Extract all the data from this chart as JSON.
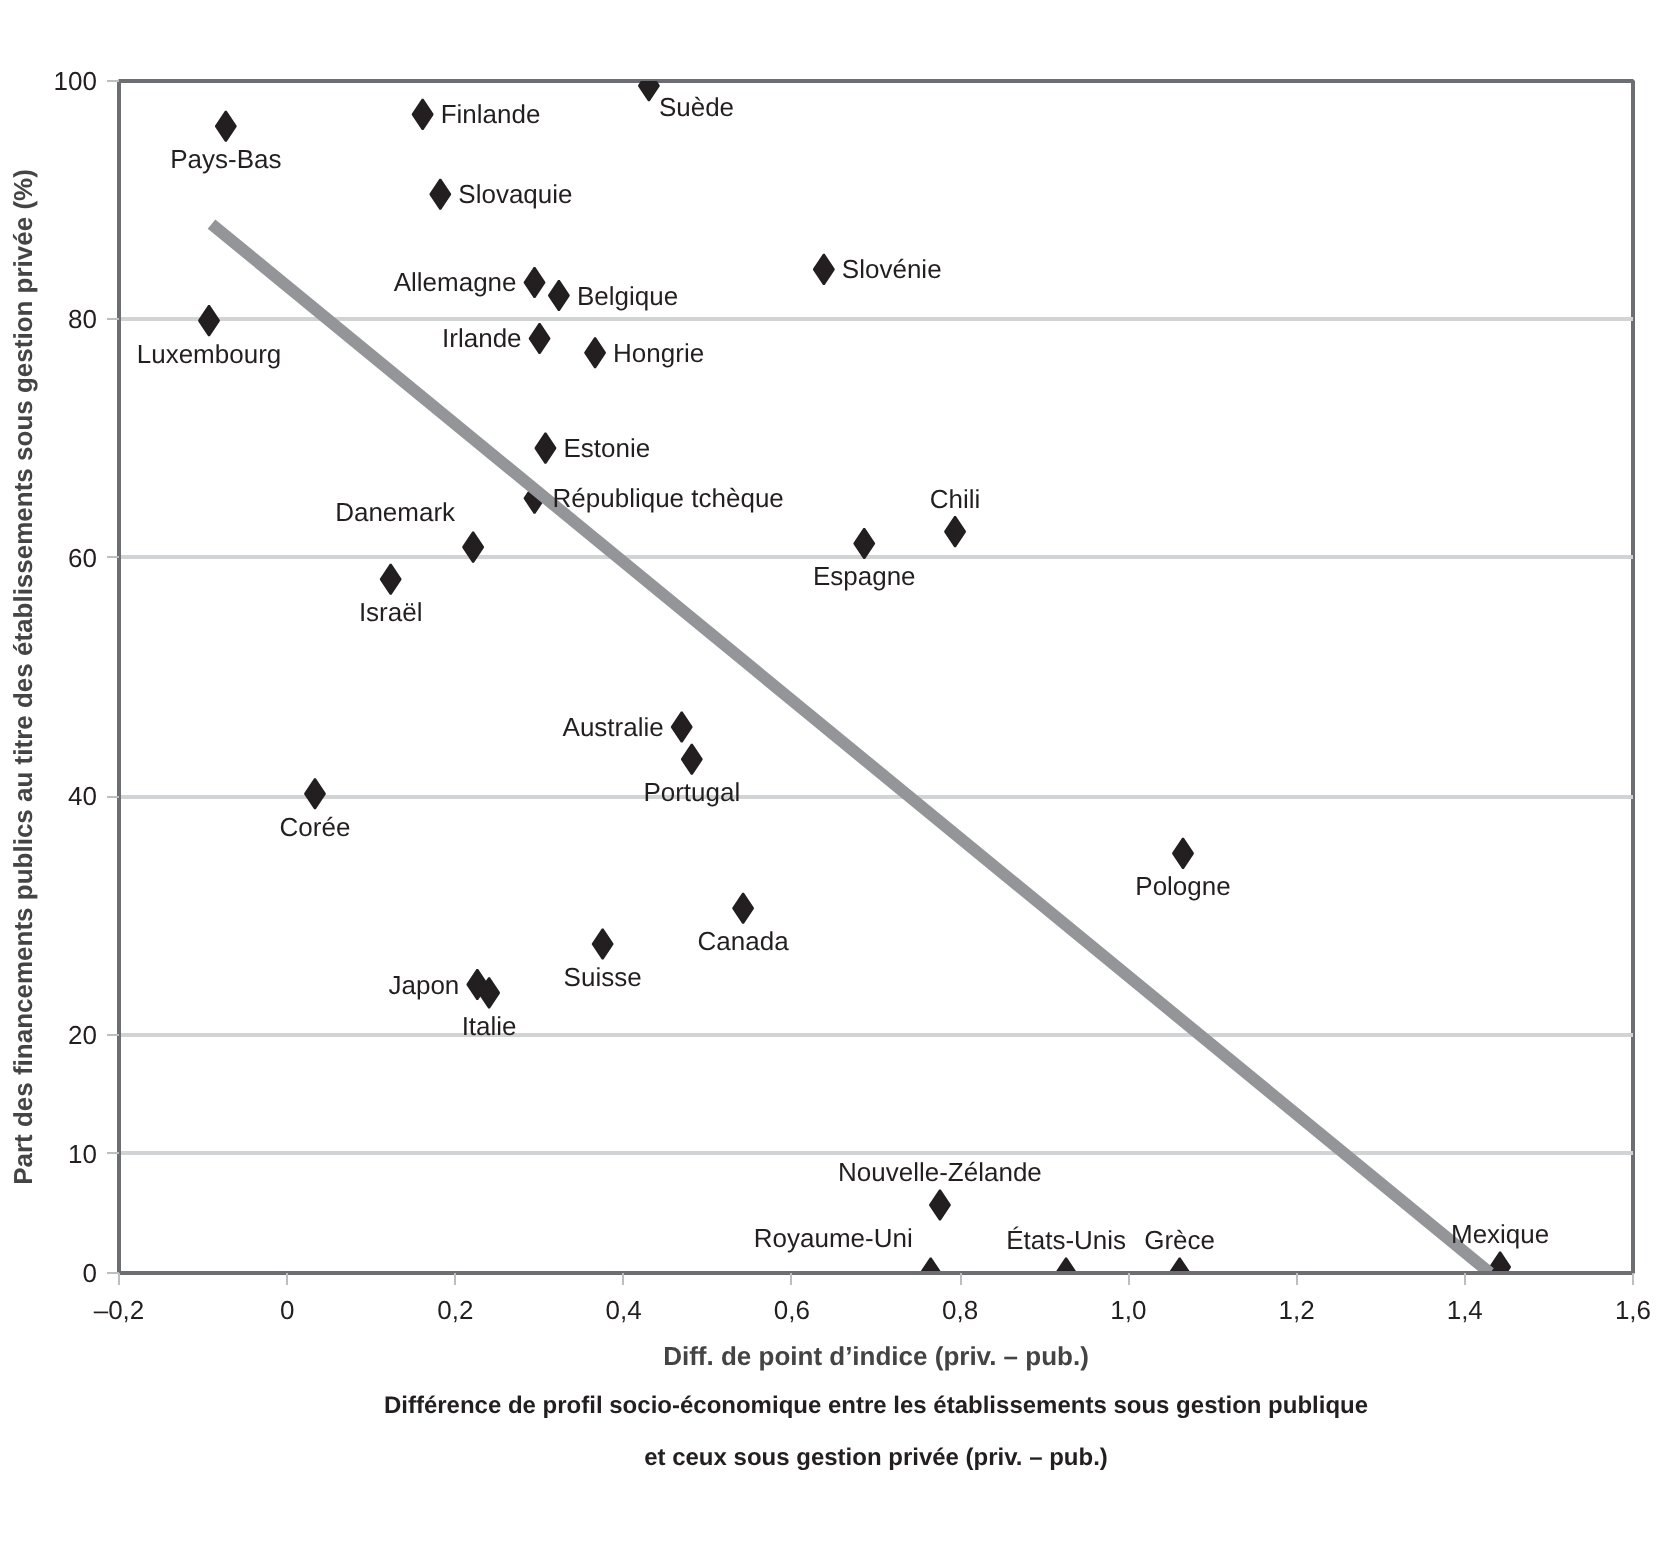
{
  "chart_data": {
    "type": "scatter",
    "xlabel": "Diff. de point d’indice (priv. – pub.)",
    "ylabel": "Part des financements publics au titre des établissements sous gestion privée (%)",
    "xlim": [
      -0.2,
      1.6
    ],
    "ylim": [
      0,
      100
    ],
    "xticks": [
      {
        "value": -0.2,
        "label": "–0,2"
      },
      0,
      {
        "value": 0.2,
        "label": "0,2"
      },
      {
        "value": 0.4,
        "label": "0,4"
      },
      {
        "value": 0.6,
        "label": "0,6"
      },
      {
        "value": 0.8,
        "label": "0,8"
      },
      {
        "value": 1.0,
        "label": "1,0"
      },
      {
        "value": 1.2,
        "label": "1,2"
      },
      {
        "value": 1.4,
        "label": "1,4"
      },
      {
        "value": 1.6,
        "label": "1,6"
      }
    ],
    "yticks": [
      0,
      10,
      20,
      40,
      60,
      80,
      100
    ],
    "grid": "y",
    "series": [
      {
        "marker": "diamond",
        "color": "#231f20",
        "x": [
          -0.073,
          0.161,
          0.43,
          0.182,
          0.294,
          0.323,
          -0.093,
          0.3,
          0.366,
          0.638,
          0.307,
          0.294,
          0.221,
          0.123,
          0.686,
          0.794,
          0.469,
          0.481,
          0.033,
          0.542,
          0.375,
          0.226,
          0.24,
          1.065,
          0.776,
          0.765,
          0.926,
          1.061,
          1.442
        ],
        "values": [
          96.2,
          97.2,
          99.6,
          90.5,
          83.1,
          82.0,
          79.9,
          78.4,
          77.2,
          84.2,
          69.2,
          65.0,
          60.9,
          58.2,
          61.2,
          62.2,
          45.8,
          43.1,
          40.2,
          30.6,
          27.6,
          24.2,
          23.5,
          35.2,
          5.7,
          0,
          0,
          0,
          0.5
        ]
      },
      {
        "type": "line",
        "color": "#939598",
        "x": [
          -0.09,
          1.43
        ],
        "values": [
          88,
          0
        ]
      }
    ],
    "annotations": [
      {
        "text": "Pays-Bas",
        "x": -0.073,
        "y": 96.2
      },
      {
        "text": "Finlande",
        "x": 0.161,
        "y": 97.2
      },
      {
        "text": "Suède",
        "x": 0.43,
        "y": 99.6
      },
      {
        "text": "Slovaquie",
        "x": 0.182,
        "y": 90.5
      },
      {
        "text": "Allemagne",
        "x": 0.294,
        "y": 83.1
      },
      {
        "text": "Belgique",
        "x": 0.323,
        "y": 82.0
      },
      {
        "text": "Luxembourg",
        "x": -0.093,
        "y": 79.9
      },
      {
        "text": "Irlande",
        "x": 0.3,
        "y": 78.4
      },
      {
        "text": "Hongrie",
        "x": 0.366,
        "y": 77.2
      },
      {
        "text": "Slovénie",
        "x": 0.638,
        "y": 84.2
      },
      {
        "text": "Estonie",
        "x": 0.307,
        "y": 69.2
      },
      {
        "text": "République tchèque",
        "x": 0.294,
        "y": 65.0
      },
      {
        "text": "Danemark",
        "x": 0.221,
        "y": 60.9
      },
      {
        "text": "Israël",
        "x": 0.123,
        "y": 58.2
      },
      {
        "text": "Espagne",
        "x": 0.686,
        "y": 61.2
      },
      {
        "text": "Chili",
        "x": 0.794,
        "y": 62.2
      },
      {
        "text": "Australie",
        "x": 0.469,
        "y": 45.8
      },
      {
        "text": "Portugal",
        "x": 0.481,
        "y": 43.1
      },
      {
        "text": "Corée",
        "x": 0.033,
        "y": 40.2
      },
      {
        "text": "Canada",
        "x": 0.542,
        "y": 30.6
      },
      {
        "text": "Suisse",
        "x": 0.375,
        "y": 27.6
      },
      {
        "text": "Japon",
        "x": 0.226,
        "y": 24.2
      },
      {
        "text": "Italie",
        "x": 0.24,
        "y": 23.5
      },
      {
        "text": "Pologne",
        "x": 1.065,
        "y": 35.2
      },
      {
        "text": "Nouvelle-Zélande",
        "x": 0.776,
        "y": 5.7
      },
      {
        "text": "Royaume-Uni",
        "x": 0.765,
        "y": 0
      },
      {
        "text": "États-Unis",
        "x": 0.926,
        "y": 0
      },
      {
        "text": "Grèce",
        "x": 1.061,
        "y": 0
      },
      {
        "text": "Mexique",
        "x": 1.442,
        "y": 0.5
      },
      "Différence de profil socio-économique entre les établissements sous gestion publique\net ceux sous gestion privée (priv. – pub.)"
    ]
  }
}
